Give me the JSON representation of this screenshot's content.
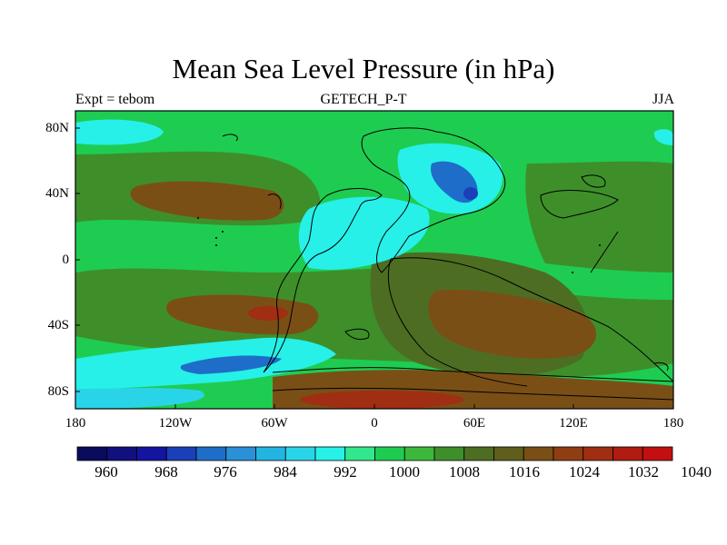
{
  "title": "Mean Sea Level Pressure (in hPa)",
  "subtitle_left": "Expt = tebom",
  "subtitle_center": "GETECH_P-T",
  "subtitle_right": "JJA",
  "lat_ticks": [
    "80N",
    "40N",
    "0",
    "40S",
    "80S"
  ],
  "lon_ticks": [
    "180",
    "120W",
    "60W",
    "0",
    "60E",
    "120E",
    "180"
  ],
  "colorbar": {
    "labels": [
      "960",
      "968",
      "976",
      "984",
      "992",
      "1000",
      "1008",
      "1016",
      "1024",
      "1032",
      "1040"
    ],
    "colors": [
      "#0b0b5c",
      "#10107e",
      "#1414a0",
      "#1a3fb8",
      "#1e6ec9",
      "#2a90d8",
      "#24b4e2",
      "#2ad4e8",
      "#27f0e8",
      "#33e88c",
      "#1fcc52",
      "#3cb83c",
      "#3e8f2a",
      "#4d6e22",
      "#5f5e1c",
      "#7a4f16",
      "#8f3e14",
      "#a02e12",
      "#b01c10",
      "#c21010"
    ]
  },
  "colors": {
    "background": "#1fcc52",
    "cyan": "#27f0e8",
    "light_cyan": "#2ad4e8",
    "blue": "#1e6ec9",
    "dark_green": "#3e8f2a",
    "olive": "#4d6e22",
    "brown": "#7a4f16",
    "red_brown": "#a02e12"
  }
}
